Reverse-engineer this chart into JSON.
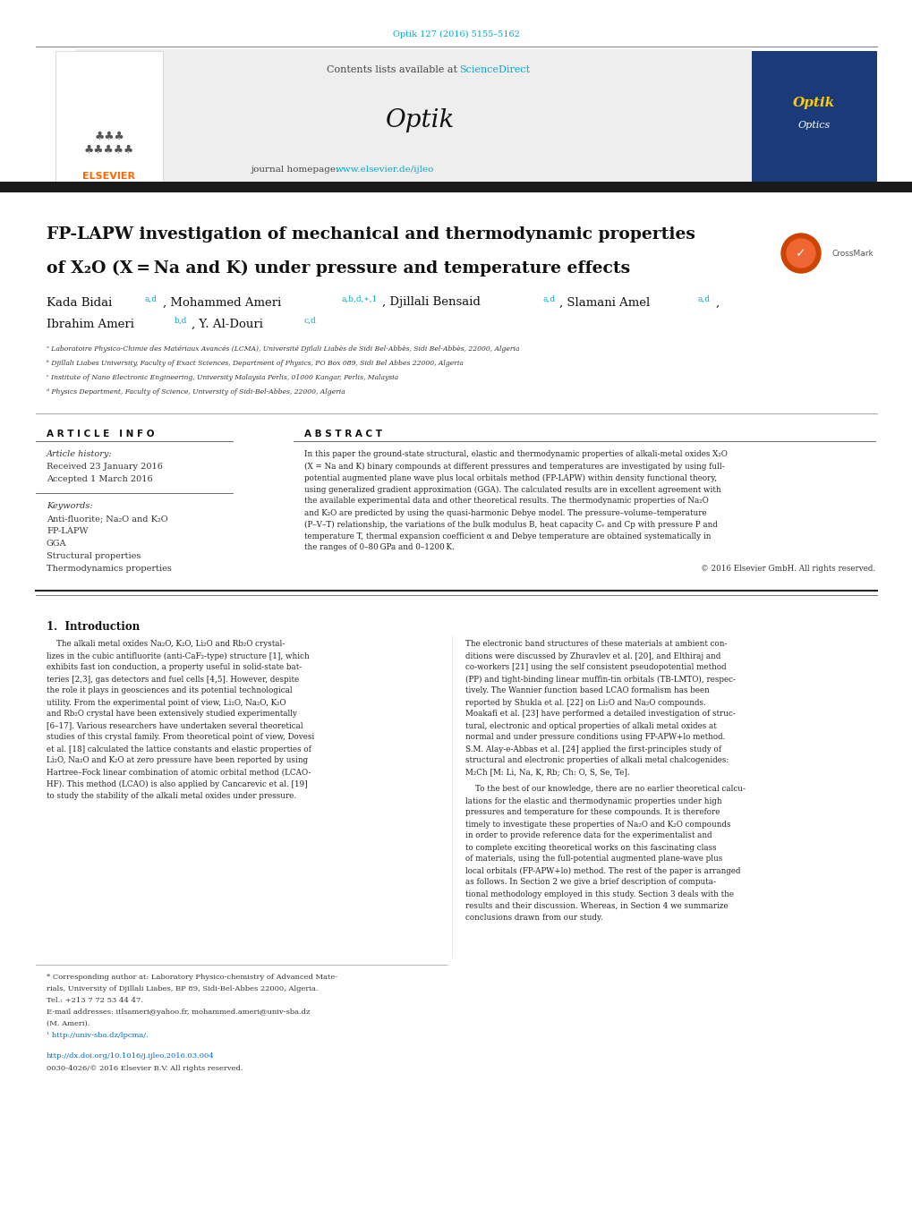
{
  "page_width": 10.2,
  "page_height": 13.51,
  "bg_color": "#ffffff",
  "doi_text": "Optik 127 (2016) 5155–5162",
  "doi_color": "#00aacc",
  "contents_text": "Contents lists available at ",
  "sciencedirect_text": "ScienceDirect",
  "sciencedirect_color": "#00aacc",
  "journal_name": "Optik",
  "journal_homepage_text": "journal homepage: ",
  "journal_url": "www.elsevier.de/ijleo",
  "journal_url_color": "#00aacc",
  "elsevier_color": "#ff6600",
  "elsevier_text": "ELSEVIER",
  "article_title_line1": "FP-LAPW investigation of mechanical and thermodynamic properties",
  "article_title_line2": "of X₂O (X = Na and K) under pressure and temperature effects",
  "affil_a": "ᵃ Laboratoire Physico-Chimie des Matériaux Avancés (LCMA), Université Djilali Liabès de Sidi Bel-Abbès, Sidi Bel-Abbès, 22000, Algeria",
  "affil_b": "ᵇ Djillali Liabes University, Faculty of Exact Sciences, Department of Physics, PO Box 089, Sidi Bel Abbes 22000, Algeria",
  "affil_c": "ᶜ Institute of Nano Electronic Engineering, University Malaysia Perlis, 01000 Kangar, Perlis, Malaysia",
  "affil_d": "ᵈ Physics Department, Faculty of Science, University of Sidi-Bel-Abbes, 22000, Algeria",
  "article_info_title": "A R T I C L E   I N F O",
  "abstract_title": "A B S T R A C T",
  "article_history_title": "Article history:",
  "received": "Received 23 January 2016",
  "accepted": "Accepted 1 March 2016",
  "keywords_title": "Keywords:",
  "keywords": [
    "Anti-fluorite; Na₂O and K₂O",
    "FP-LAPW",
    "GGA",
    "Structural properties",
    "Thermodynamics properties"
  ],
  "copyright": "© 2016 Elsevier GmbH. All rights reserved.",
  "intro_title": "1.  Introduction",
  "footnote1": "* Corresponding author at: Laboratory Physico-chemistry of Advanced Mate-",
  "footnote1b": "rials, University of Djillali Liabes, BP 89, Sidi-Bel-Abbes 22000, Algeria.",
  "footnote1c": "Tel.: +213 7 72 53 44 47.",
  "footnote2": "E-mail addresses: itlsameri@yahoo.fr, mohammed.ameri@univ-sba.dz",
  "footnote2b": "(M. Ameri).",
  "footnote3": "¹ http://univ-sba.dz/lpcma/.",
  "doi_link": "http://dx.doi.org/10.1016/j.ijleo.2016.03.004",
  "issn": "0030-4026/© 2016 Elsevier B.V. All rights reserved.",
  "link_color": "#0066cc",
  "cyan_color": "#00aacc",
  "text_color": "#000000",
  "small_text_color": "#333333"
}
